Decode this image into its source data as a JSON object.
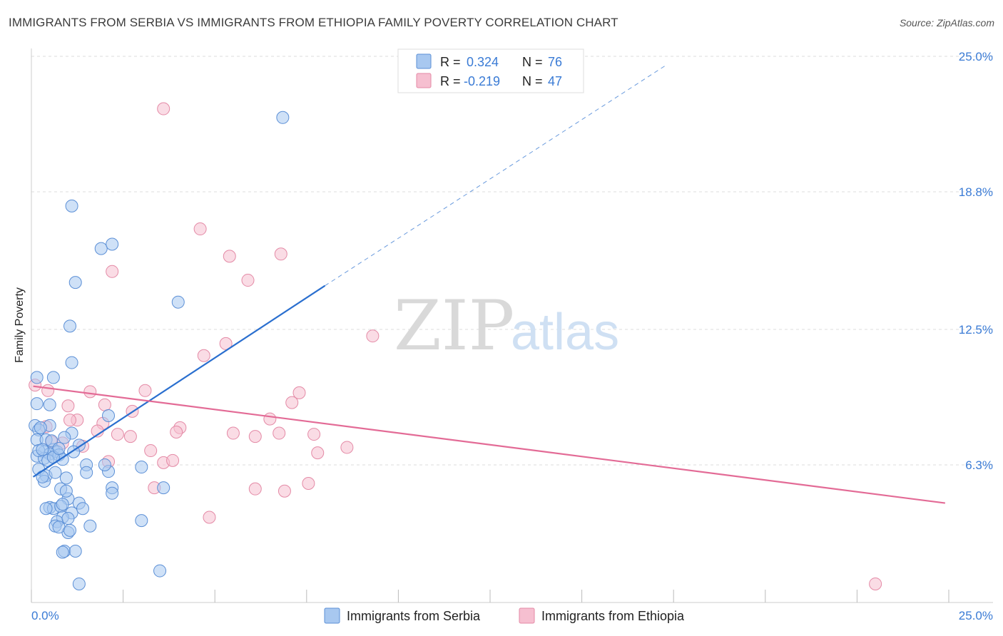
{
  "header": {
    "title": "IMMIGRANTS FROM SERBIA VS IMMIGRANTS FROM ETHIOPIA FAMILY POVERTY CORRELATION CHART",
    "source": "Source: ZipAtlas.com"
  },
  "watermark": {
    "zip": "ZIP",
    "atlas": "atlas"
  },
  "legend_box": {
    "rows": [
      {
        "r_label": "R =",
        "r_value": "0.324",
        "n_label": "N =",
        "n_value": "76"
      },
      {
        "r_label": "R =",
        "r_value": "-0.219",
        "n_label": "N =",
        "n_value": "47"
      }
    ]
  },
  "colors": {
    "serbia_fill": "#a8c8f0",
    "serbia_stroke": "#5b8fd6",
    "serbia_line": "#2a6fcf",
    "ethiopia_fill": "#f6bfd0",
    "ethiopia_stroke": "#e48aa6",
    "ethiopia_line": "#e36b96",
    "grid": "#dddddd",
    "axis_label": "#3a7bd5"
  },
  "chart_data": {
    "type": "scatter",
    "title": "IMMIGRANTS FROM SERBIA VS IMMIGRANTS FROM ETHIOPIA FAMILY POVERTY CORRELATION CHART",
    "xlabel": "",
    "ylabel": "Family Poverty",
    "xlim": [
      0,
      25
    ],
    "ylim": [
      0,
      25
    ],
    "x_tick_labels": [
      "0.0%",
      "25.0%"
    ],
    "y_ticks": [
      6.3,
      12.5,
      18.8,
      25.0
    ],
    "y_tick_labels": [
      "6.3%",
      "12.5%",
      "18.8%",
      "25.0%"
    ],
    "grid": true,
    "legend_placement": "bottom",
    "series": [
      {
        "name": "Immigrants from Serbia",
        "R": 0.324,
        "N": 76,
        "trend": {
          "x0": 0.05,
          "y0": 5.75,
          "x1": 8.0,
          "y1": 14.5,
          "dash_to_x": 17.3,
          "dash_to_y": 24.6
        },
        "points": [
          [
            6.85,
            22.2
          ],
          [
            1.1,
            18.15
          ],
          [
            1.9,
            16.2
          ],
          [
            2.2,
            16.4
          ],
          [
            1.2,
            14.65
          ],
          [
            4.0,
            13.75
          ],
          [
            1.05,
            12.65
          ],
          [
            1.1,
            10.98
          ],
          [
            0.15,
            10.3
          ],
          [
            0.6,
            10.3
          ],
          [
            0.15,
            9.1
          ],
          [
            0.5,
            9.05
          ],
          [
            2.1,
            8.55
          ],
          [
            0.1,
            8.1
          ],
          [
            0.5,
            8.1
          ],
          [
            0.2,
            7.9
          ],
          [
            1.1,
            7.75
          ],
          [
            0.15,
            7.45
          ],
          [
            0.4,
            7.45
          ],
          [
            0.9,
            7.55
          ],
          [
            1.3,
            7.2
          ],
          [
            0.6,
            7.0
          ],
          [
            0.35,
            6.9
          ],
          [
            0.7,
            6.9
          ],
          [
            0.5,
            6.8
          ],
          [
            0.75,
            6.75
          ],
          [
            0.15,
            6.7
          ],
          [
            0.35,
            6.6
          ],
          [
            0.85,
            6.55
          ],
          [
            1.5,
            6.3
          ],
          [
            2.1,
            6.0
          ],
          [
            1.5,
            5.95
          ],
          [
            3.0,
            6.2
          ],
          [
            0.2,
            6.1
          ],
          [
            0.4,
            5.8
          ],
          [
            0.65,
            5.95
          ],
          [
            0.95,
            5.7
          ],
          [
            0.35,
            5.55
          ],
          [
            2.2,
            5.25
          ],
          [
            3.6,
            5.25
          ],
          [
            2.2,
            5.0
          ],
          [
            0.8,
            5.2
          ],
          [
            1.0,
            4.75
          ],
          [
            1.3,
            4.55
          ],
          [
            0.5,
            4.35
          ],
          [
            0.6,
            4.3
          ],
          [
            0.8,
            4.4
          ],
          [
            1.1,
            4.1
          ],
          [
            0.85,
            3.9
          ],
          [
            0.7,
            3.7
          ],
          [
            1.0,
            3.85
          ],
          [
            1.6,
            3.5
          ],
          [
            0.65,
            3.5
          ],
          [
            3.0,
            3.75
          ],
          [
            1.0,
            3.2
          ],
          [
            0.9,
            2.35
          ],
          [
            1.2,
            2.35
          ],
          [
            3.5,
            1.45
          ],
          [
            1.3,
            0.85
          ],
          [
            0.75,
            3.45
          ],
          [
            1.05,
            3.3
          ],
          [
            0.4,
            4.3
          ],
          [
            0.85,
            4.5
          ],
          [
            0.2,
            6.95
          ],
          [
            0.55,
            7.4
          ],
          [
            0.3,
            7.0
          ],
          [
            1.15,
            6.9
          ],
          [
            0.45,
            6.5
          ],
          [
            2.0,
            6.3
          ],
          [
            0.95,
            5.1
          ],
          [
            1.4,
            4.3
          ],
          [
            0.6,
            6.65
          ],
          [
            0.25,
            8.0
          ],
          [
            0.75,
            7.05
          ],
          [
            0.3,
            5.75
          ],
          [
            0.85,
            2.3
          ]
        ]
      },
      {
        "name": "Immigrants from Ethiopia",
        "R": -0.219,
        "N": 47,
        "trend": {
          "x0": 0.05,
          "y0": 9.9,
          "x1": 24.9,
          "y1": 4.55
        },
        "points": [
          [
            3.6,
            22.6
          ],
          [
            4.6,
            17.1
          ],
          [
            5.4,
            15.85
          ],
          [
            6.8,
            15.95
          ],
          [
            2.2,
            15.15
          ],
          [
            5.9,
            14.75
          ],
          [
            9.3,
            12.2
          ],
          [
            5.3,
            11.85
          ],
          [
            4.7,
            11.3
          ],
          [
            0.1,
            9.95
          ],
          [
            0.45,
            9.7
          ],
          [
            1.6,
            9.65
          ],
          [
            3.1,
            9.7
          ],
          [
            7.3,
            9.6
          ],
          [
            7.1,
            9.15
          ],
          [
            1.0,
            9.0
          ],
          [
            2.0,
            9.05
          ],
          [
            2.75,
            8.75
          ],
          [
            6.5,
            8.4
          ],
          [
            1.25,
            8.35
          ],
          [
            1.05,
            8.35
          ],
          [
            1.95,
            8.2
          ],
          [
            0.4,
            8.05
          ],
          [
            4.05,
            8.0
          ],
          [
            2.35,
            7.7
          ],
          [
            3.95,
            7.8
          ],
          [
            5.5,
            7.75
          ],
          [
            6.75,
            7.75
          ],
          [
            7.7,
            7.7
          ],
          [
            2.7,
            7.6
          ],
          [
            6.1,
            7.6
          ],
          [
            1.8,
            7.85
          ],
          [
            0.55,
            7.35
          ],
          [
            0.85,
            7.3
          ],
          [
            1.4,
            7.15
          ],
          [
            8.6,
            7.1
          ],
          [
            3.25,
            6.95
          ],
          [
            7.8,
            6.85
          ],
          [
            2.1,
            6.45
          ],
          [
            3.6,
            6.4
          ],
          [
            3.85,
            6.5
          ],
          [
            7.55,
            5.45
          ],
          [
            3.35,
            5.25
          ],
          [
            6.1,
            5.2
          ],
          [
            6.9,
            5.1
          ],
          [
            4.85,
            3.9
          ],
          [
            23.0,
            0.85
          ]
        ]
      }
    ]
  },
  "bottom_legend": {
    "items": [
      {
        "label": "Immigrants from Serbia"
      },
      {
        "label": "Immigrants from Ethiopia"
      }
    ]
  }
}
